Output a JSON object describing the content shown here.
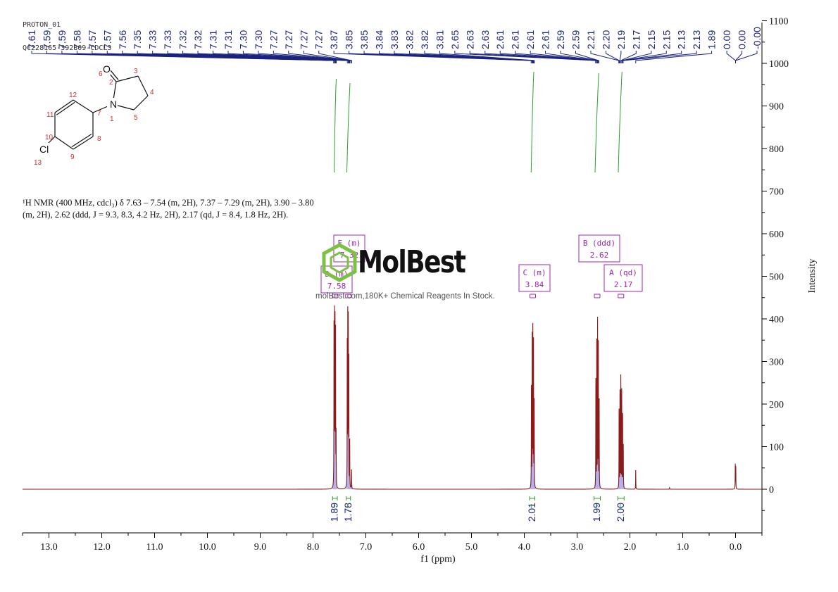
{
  "header": {
    "line1": "PROTON_01",
    "line2": "QC228165-392809-CDCL3"
  },
  "nmr_description": "¹H NMR (400 MHz, cdcl₃) δ 7.63 – 7.54 (m, 2H), 7.37 – 7.29 (m, 2H), 3.90 – 3.80 (m, 2H), 2.62 (ddd, J = 9.3, 8.3, 4.2 Hz, 2H), 2.17 (qd, J = 8.4, 1.8 Hz, 2H).",
  "watermark": {
    "brand": "MolBest",
    "tagline": "molBest.com,180K+ Chemical Reagents In Stock."
  },
  "molecule": {
    "atoms": [
      {
        "symbol": "O",
        "label": "6"
      },
      {
        "symbol": "",
        "label": "2"
      },
      {
        "symbol": "",
        "label": "3"
      },
      {
        "symbol": "",
        "label": "4"
      },
      {
        "symbol": "",
        "label": "5"
      },
      {
        "symbol": "N",
        "label": "1"
      },
      {
        "symbol": "",
        "label": "7"
      },
      {
        "symbol": "",
        "label": "8"
      },
      {
        "symbol": "",
        "label": "9"
      },
      {
        "symbol": "",
        "label": "10"
      },
      {
        "symbol": "",
        "label": "11"
      },
      {
        "symbol": "",
        "label": "12"
      },
      {
        "symbol": "Cl",
        "label": "13"
      }
    ]
  },
  "chart_data": {
    "type": "line",
    "xlabel": "f1 (ppm)",
    "ylabel": "Intensity",
    "xlim": [
      13.5,
      -0.5
    ],
    "ylim": [
      -110,
      1100
    ],
    "x_ticks": [
      "13.0",
      "12.0",
      "11.0",
      "10.0",
      "9.0",
      "8.0",
      "7.0",
      "6.0",
      "5.0",
      "4.0",
      "3.0",
      "2.0",
      "1.0",
      "0.0"
    ],
    "x_tick_values": [
      13,
      12,
      11,
      10,
      9,
      8,
      7,
      6,
      5,
      4,
      3,
      2,
      1,
      0
    ],
    "y_ticks": [
      0,
      100,
      200,
      300,
      400,
      500,
      600,
      700,
      800,
      900,
      1000,
      1100
    ],
    "peak_labels": [
      "7.61",
      "7.59",
      "7.59",
      "7.58",
      "7.57",
      "7.57",
      "7.56",
      "7.35",
      "7.33",
      "7.33",
      "7.32",
      "7.32",
      "7.31",
      "7.31",
      "7.30",
      "7.30",
      "7.27",
      "7.27",
      "7.27",
      "7.27",
      "3.87",
      "3.85",
      "3.85",
      "3.84",
      "3.83",
      "3.82",
      "3.82",
      "3.81",
      "2.65",
      "2.63",
      "2.63",
      "2.61",
      "2.61",
      "2.61",
      "2.61",
      "2.59",
      "2.59",
      "2.21",
      "2.20",
      "2.19",
      "2.17",
      "2.15",
      "2.15",
      "2.13",
      "2.13",
      "1.89",
      "0.00",
      "0.00",
      "-0.00"
    ],
    "peaks": [
      {
        "ppm": 7.603,
        "height": 375
      },
      {
        "ppm": 7.593,
        "height": 395
      },
      {
        "ppm": 7.583,
        "height": 380
      },
      {
        "ppm": 7.573,
        "height": 360
      },
      {
        "ppm": 7.563,
        "height": 120
      },
      {
        "ppm": 7.352,
        "height": 330
      },
      {
        "ppm": 7.342,
        "height": 405
      },
      {
        "ppm": 7.332,
        "height": 380
      },
      {
        "ppm": 7.322,
        "height": 300
      },
      {
        "ppm": 7.305,
        "height": 110
      },
      {
        "ppm": 7.27,
        "height": 45
      },
      {
        "ppm": 3.865,
        "height": 235
      },
      {
        "ppm": 3.85,
        "height": 360
      },
      {
        "ppm": 3.838,
        "height": 378
      },
      {
        "ppm": 3.825,
        "height": 340
      },
      {
        "ppm": 3.812,
        "height": 200
      },
      {
        "ppm": 2.645,
        "height": 255
      },
      {
        "ppm": 2.628,
        "height": 340
      },
      {
        "ppm": 2.612,
        "height": 388
      },
      {
        "ppm": 2.598,
        "height": 345
      },
      {
        "ppm": 2.582,
        "height": 210
      },
      {
        "ppm": 2.205,
        "height": 185
      },
      {
        "ppm": 2.188,
        "height": 225
      },
      {
        "ppm": 2.172,
        "height": 260
      },
      {
        "ppm": 2.155,
        "height": 230
      },
      {
        "ppm": 2.138,
        "height": 175
      },
      {
        "ppm": 2.125,
        "height": 100
      },
      {
        "ppm": 1.89,
        "height": 45
      },
      {
        "ppm": 1.25,
        "height": 4
      },
      {
        "ppm": 0.005,
        "height": 58
      },
      {
        "ppm": -0.005,
        "height": 52
      }
    ],
    "integrals": [
      {
        "value": "1.89",
        "from": 7.63,
        "to": 7.54,
        "label_at": 7.585
      },
      {
        "value": "1.78",
        "from": 7.37,
        "to": 7.29,
        "label_at": 7.33
      },
      {
        "value": "2.01",
        "from": 3.9,
        "to": 3.8,
        "label_at": 3.85
      },
      {
        "value": "1.99",
        "from": 2.68,
        "to": 2.56,
        "label_at": 2.62
      },
      {
        "value": "2.00",
        "from": 2.23,
        "to": 2.11,
        "label_at": 2.17
      }
    ],
    "multiplets": [
      {
        "letter": "D",
        "type": "(m)",
        "shift": "7.58",
        "at": 7.58
      },
      {
        "letter": "E",
        "type": "(m)",
        "shift": "7.32",
        "at": 7.33
      },
      {
        "letter": "C",
        "type": "(m)",
        "shift": "3.84",
        "at": 3.84
      },
      {
        "letter": "B",
        "type": "(ddd)",
        "shift": "2.62",
        "at": 2.62
      },
      {
        "letter": "A",
        "type": "(qd)",
        "shift": "2.17",
        "at": 2.17
      }
    ],
    "colors": {
      "spectrum": "#8b1a1a",
      "peak_fill": "#2222cc",
      "label_lines": "#1a237e",
      "integral": "#2e9e2e",
      "multiplet": "#9c27b0",
      "axis": "#000000"
    }
  }
}
